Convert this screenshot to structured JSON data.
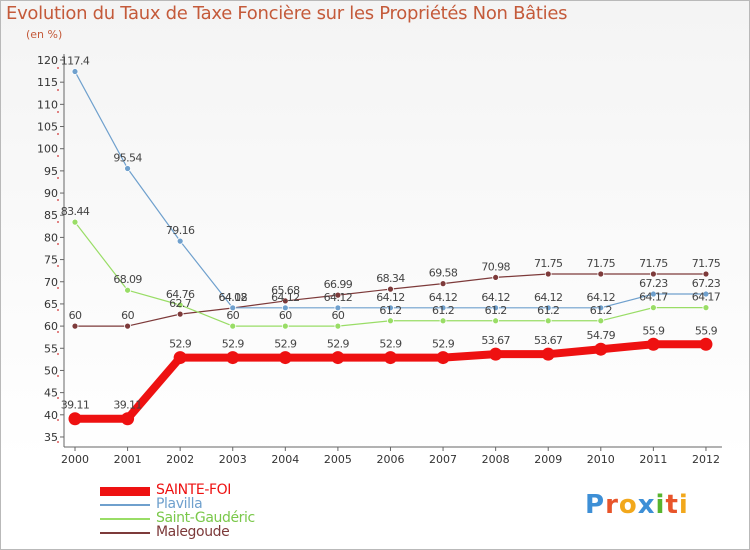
{
  "title": "Evolution du Taux de Taxe Foncière sur les Propriétés Non Bâties",
  "unit": "(en %)",
  "brand": {
    "name": "Proxiti",
    "letters": [
      {
        "ch": "P",
        "color": "#3d8fd6"
      },
      {
        "ch": "r",
        "color": "#e8542a"
      },
      {
        "ch": "o",
        "color": "#f2a81c"
      },
      {
        "ch": "x",
        "color": "#3d8fd6"
      },
      {
        "ch": "i",
        "color": "#58b42e"
      },
      {
        "ch": "t",
        "color": "#e8542a"
      },
      {
        "ch": "i",
        "color": "#f2a81c"
      }
    ]
  },
  "chart_data": {
    "type": "line",
    "title": "Evolution du Taux de Taxe Foncière sur les Propriétés Non Bâties",
    "ylabel": "(en %)",
    "xlabel": "",
    "x": [
      "2000",
      "2001",
      "2002",
      "2003",
      "2004",
      "2005",
      "2006",
      "2007",
      "2008",
      "2009",
      "2010",
      "2011",
      "2012"
    ],
    "ylim": [
      35,
      120
    ],
    "yticks": [
      35,
      40,
      45,
      50,
      55,
      60,
      65,
      70,
      75,
      80,
      85,
      90,
      95,
      100,
      105,
      110,
      115,
      120
    ],
    "grid": false,
    "legend": "bottom-left",
    "series": [
      {
        "name": "SAINTE-FOI",
        "color": "#ee1111",
        "values": [
          39.11,
          39.11,
          52.9,
          52.9,
          52.9,
          52.9,
          52.9,
          52.9,
          53.67,
          53.67,
          54.79,
          55.9,
          55.9
        ],
        "labels": [
          "39.11",
          "39.11",
          "52.9",
          "52.9",
          "52.9",
          "52.9",
          "52.9",
          "52.9",
          "53.67",
          "53.67",
          "54.79",
          "55.9",
          "55.9"
        ]
      },
      {
        "name": "Plavilla",
        "color": "#6fa0cd",
        "values": [
          117.4,
          95.54,
          79.16,
          64.12,
          64.12,
          64.12,
          64.12,
          64.12,
          64.12,
          64.12,
          64.12,
          67.23,
          67.23
        ],
        "labels": [
          "117.4",
          "95.54",
          "79.16",
          "64.12",
          "64.12",
          "64.12",
          "64.12",
          "64.12",
          "64.12",
          "64.12",
          "64.12",
          "67.23",
          "67.23"
        ]
      },
      {
        "name": "Saint-Gaudéric",
        "color": "#99dd66",
        "values": [
          83.44,
          68.09,
          64.76,
          60,
          60,
          60,
          61.2,
          61.2,
          61.2,
          61.2,
          61.2,
          64.17,
          64.17
        ],
        "labels": [
          "83.44",
          "68.09",
          "64.76",
          "60",
          "60",
          "60",
          "61.2",
          "61.2",
          "61.2",
          "61.2",
          "61.2",
          "64.17",
          "64.17"
        ]
      },
      {
        "name": "Malegoude",
        "color": "#7d3a3a",
        "values": [
          60,
          60,
          62.7,
          64.08,
          65.68,
          66.99,
          68.34,
          69.58,
          70.98,
          71.75,
          71.75,
          71.75,
          71.75
        ],
        "labels": [
          "60",
          "60",
          "62.7",
          "64.08",
          "65.68",
          "66.99",
          "68.34",
          "69.58",
          "70.98",
          "71.75",
          "71.75",
          "71.75",
          "71.75"
        ]
      }
    ]
  }
}
